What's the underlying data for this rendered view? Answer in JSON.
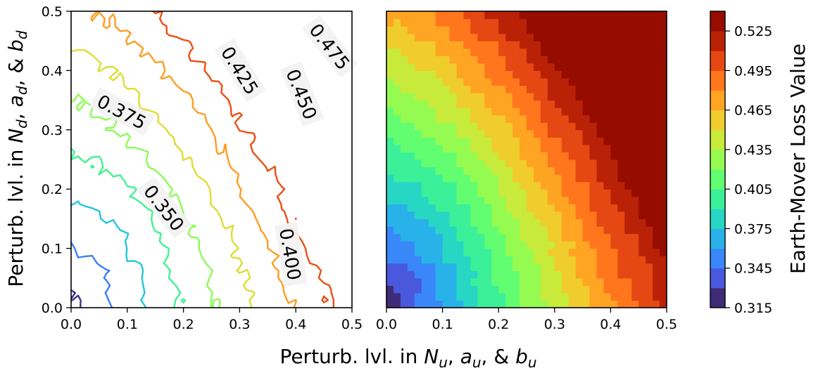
{
  "figure": {
    "xlabel_parts": [
      "Perturb. lvl. in ",
      "N",
      "u",
      ", ",
      "a",
      "u",
      ", & ",
      "b",
      "u"
    ],
    "ylabel_parts": [
      "Perturb. lvl. in ",
      "N",
      "d",
      ", ",
      "a",
      "d",
      ", & ",
      "b",
      "d"
    ],
    "colorbar_label": "Earth-Mover Loss Value"
  },
  "chart_data": [
    {
      "type": "contour",
      "panel": "left",
      "xlim": [
        0.0,
        0.5
      ],
      "ylim": [
        0.0,
        0.5
      ],
      "xticks": [
        "0.0",
        "0.1",
        "0.2",
        "0.3",
        "0.4",
        "0.5"
      ],
      "yticks": [
        "0.0",
        "0.1",
        "0.2",
        "0.3",
        "0.4",
        "0.5"
      ],
      "levels": [
        0.325,
        0.35,
        0.375,
        0.4,
        0.425,
        0.45,
        0.475,
        0.5
      ],
      "contour_labels": [
        {
          "text": "0.375",
          "x": 0.09,
          "y": 0.33
        },
        {
          "text": "0.350",
          "x": 0.165,
          "y": 0.168
        },
        {
          "text": "0.425",
          "x": 0.3,
          "y": 0.4
        },
        {
          "text": "0.450",
          "x": 0.41,
          "y": 0.36
        },
        {
          "text": "0.475",
          "x": 0.46,
          "y": 0.44
        },
        {
          "text": "0.400",
          "x": 0.39,
          "y": 0.09
        }
      ],
      "grid": false
    },
    {
      "type": "heatmap",
      "panel": "right",
      "xlim": [
        0.0,
        0.5
      ],
      "ylim": [
        0.0,
        0.5
      ],
      "xticks": [
        "0.0",
        "0.1",
        "0.2",
        "0.3",
        "0.4",
        "0.5"
      ],
      "value_range": [
        0.315,
        0.54
      ],
      "min_at": [
        0.0,
        0.0
      ],
      "max_at": [
        0.5,
        0.5
      ],
      "grid": false
    }
  ],
  "colorbar": {
    "min": 0.315,
    "max": 0.54,
    "step": 0.015,
    "ticks": [
      "0.315",
      "0.345",
      "0.375",
      "0.405",
      "0.435",
      "0.465",
      "0.495",
      "0.525"
    ],
    "colormap": "turbo"
  }
}
